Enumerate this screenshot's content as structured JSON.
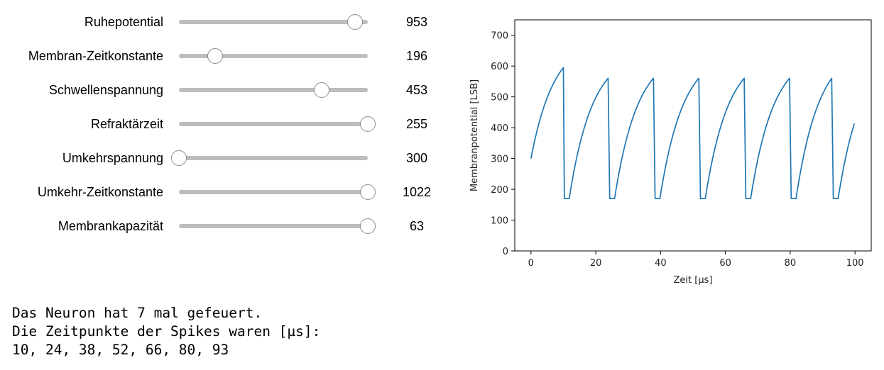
{
  "sliders": [
    {
      "label": "Ruhepotential",
      "value": 953,
      "value_text": "953",
      "min": 0,
      "max": 1023
    },
    {
      "label": "Membran-Zeitkonstante",
      "value": 196,
      "value_text": "196",
      "min": 0,
      "max": 1023
    },
    {
      "label": "Schwellenspannung",
      "value": 453,
      "value_text": "453",
      "min": 0,
      "max": 600
    },
    {
      "label": "Refraktärzeit",
      "value": 255,
      "value_text": "255",
      "min": 0,
      "max": 255
    },
    {
      "label": "Umkehrspannung",
      "value": 300,
      "value_text": "300",
      "min": 300,
      "max": 1023
    },
    {
      "label": "Umkehr-Zeitkonstante",
      "value": 1022,
      "value_text": "1022",
      "min": 0,
      "max": 1022
    },
    {
      "label": "Membrankapazität",
      "value": 63,
      "value_text": "63",
      "min": 0,
      "max": 63
    }
  ],
  "output": {
    "line1": "Das Neuron hat 7 mal gefeuert.",
    "line2": "Die Zeitpunkte der Spikes waren [µs]:",
    "line3": "10, 24, 38, 52, 66, 80, 93"
  },
  "chart_data": {
    "type": "line",
    "title": "",
    "xlabel": "Zeit [µs]",
    "ylabel": "Membranpotential [LSB]",
    "xlim": [
      -5,
      105
    ],
    "ylim": [
      0,
      750
    ],
    "xticks": [
      0,
      20,
      40,
      60,
      80,
      100
    ],
    "yticks": [
      0,
      100,
      200,
      300,
      400,
      500,
      600,
      700
    ],
    "grid": false,
    "legend": "none",
    "line_color": "#1f77b4",
    "start_value": 300,
    "rest_value": 170,
    "threshold_value": 563,
    "end_value": 420,
    "spike_times": [
      10,
      24,
      38,
      52,
      66,
      80,
      93
    ],
    "refractory_duration": 1.5,
    "end_time": 100
  }
}
